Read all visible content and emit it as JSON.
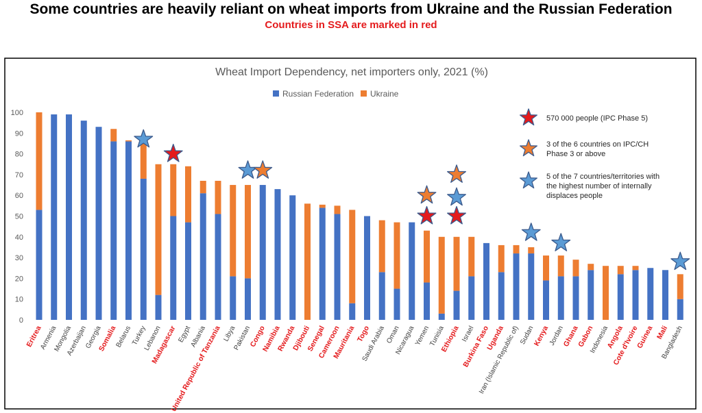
{
  "header": {
    "title": "Some countries are heavily reliant on wheat imports from Ukraine and the Russian Federation",
    "subtitle": "Countries in SSA are marked in red"
  },
  "colors": {
    "russia": "#4472c4",
    "ukraine": "#ed7d31",
    "ssa_label": "#e41a1c",
    "other_label": "#404040",
    "star_red": "#e41a1c",
    "star_orange": "#ed7d31",
    "star_blue": "#5b9bd5"
  },
  "chart_data": {
    "type": "bar",
    "stacked": true,
    "title": "Wheat Import Dependency, net importers only, 2021 (%)",
    "ylim": [
      0,
      100
    ],
    "yticks": [
      0,
      10,
      20,
      30,
      40,
      50,
      60,
      70,
      80,
      90,
      100
    ],
    "grid": false,
    "legend_position": "top-center",
    "categories": [
      "Eritrea",
      "Armenia",
      "Mongolia",
      "Azerbaijan",
      "Georgia",
      "Somalia",
      "Belarus",
      "Turkey",
      "Lebanon",
      "Madagascar",
      "Egypt",
      "Albania",
      "United Republic of Tanzania",
      "Libya",
      "Pakistan",
      "Congo",
      "Namibia",
      "Rwanda",
      "Djibouti",
      "Senegal",
      "Cameroon",
      "Mauritania",
      "Togo",
      "Saudi Arabia",
      "Oman",
      "Nicaragua",
      "Yemen",
      "Tunisia",
      "Ethiopia",
      "Israel",
      "Burkina Faso",
      "Uganda",
      "Iran (Islamic Republic of)",
      "Sudan",
      "Kenya",
      "Jordan",
      "Ghana",
      "Gabon",
      "Indonesia",
      "Angola",
      "Cote d'Ivoire",
      "Guinea",
      "Mali",
      "Bangladesh"
    ],
    "ssa": [
      true,
      false,
      false,
      false,
      false,
      true,
      false,
      false,
      false,
      true,
      false,
      false,
      true,
      false,
      false,
      true,
      true,
      true,
      true,
      true,
      true,
      true,
      true,
      false,
      false,
      false,
      false,
      false,
      true,
      false,
      true,
      true,
      false,
      false,
      true,
      false,
      true,
      true,
      false,
      true,
      true,
      true,
      true,
      false
    ],
    "series": [
      {
        "name": "Russian Federation",
        "values": [
          53,
          99,
          99,
          96,
          93,
          86,
          86,
          68,
          12,
          50,
          47,
          61,
          51,
          21,
          20,
          65,
          63,
          60,
          0,
          54,
          51,
          8,
          50,
          23,
          15,
          47,
          18,
          3,
          14,
          21,
          37,
          23,
          32,
          32,
          19,
          21,
          21,
          24,
          0,
          22,
          24,
          25,
          24,
          10
        ]
      },
      {
        "name": "Ukraine",
        "values": [
          47,
          0,
          0,
          0,
          0,
          6,
          0.5,
          17,
          63,
          25,
          27,
          6,
          16,
          44,
          45,
          0,
          0,
          0,
          56,
          1.5,
          4,
          45,
          0,
          25,
          32,
          0,
          25,
          37,
          26,
          19,
          0,
          13,
          4,
          3,
          12,
          10,
          8,
          3,
          26,
          4,
          2,
          0,
          0,
          12
        ]
      }
    ],
    "annotations": [
      {
        "category": "Turkey",
        "star": "blue",
        "value": 87
      },
      {
        "category": "Madagascar",
        "star": "red",
        "value": 80
      },
      {
        "category": "Pakistan",
        "star": "blue",
        "value": 72
      },
      {
        "category": "Congo",
        "star": "orange",
        "value": 72
      },
      {
        "category": "Yemen",
        "star": "orange",
        "value": 60
      },
      {
        "category": "Yemen",
        "star": "red",
        "value": 50
      },
      {
        "category": "Ethiopia",
        "star": "orange",
        "value": 70
      },
      {
        "category": "Ethiopia",
        "star": "blue",
        "value": 59
      },
      {
        "category": "Ethiopia",
        "star": "red",
        "value": 50
      },
      {
        "category": "Sudan",
        "star": "blue",
        "value": 42
      },
      {
        "category": "Jordan",
        "star": "blue",
        "value": 37
      },
      {
        "category": "Bangladesh",
        "star": "blue",
        "value": 28
      }
    ],
    "star_legend": [
      {
        "star": "red",
        "text": [
          "570 000 people (IPC Phase 5)"
        ]
      },
      {
        "star": "orange",
        "text": [
          "3 of the 6 countries on IPC/CH",
          "Phase 3 or above"
        ]
      },
      {
        "star": "blue",
        "text": [
          "5 of the 7 countries/territories with",
          "the highest number of internally",
          "displaces people"
        ]
      }
    ]
  }
}
